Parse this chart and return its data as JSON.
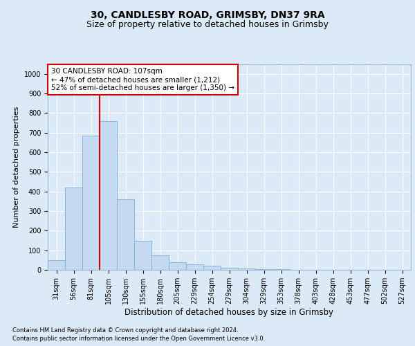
{
  "title1": "30, CANDLESBY ROAD, GRIMSBY, DN37 9RA",
  "title2": "Size of property relative to detached houses in Grimsby",
  "xlabel": "Distribution of detached houses by size in Grimsby",
  "ylabel": "Number of detached properties",
  "bar_labels": [
    "31sqm",
    "56sqm",
    "81sqm",
    "105sqm",
    "130sqm",
    "155sqm",
    "180sqm",
    "205sqm",
    "229sqm",
    "254sqm",
    "279sqm",
    "304sqm",
    "329sqm",
    "353sqm",
    "378sqm",
    "403sqm",
    "428sqm",
    "453sqm",
    "477sqm",
    "502sqm",
    "527sqm"
  ],
  "bar_values": [
    50,
    420,
    685,
    760,
    360,
    150,
    75,
    40,
    30,
    20,
    10,
    6,
    4,
    2,
    1,
    1,
    0,
    0,
    0,
    0,
    0
  ],
  "bar_color": "#c5d9f0",
  "bar_edgecolor": "#7aadd4",
  "bar_width": 1.0,
  "vline_index": 3.5,
  "vline_color": "#cc0000",
  "annotation_text": "30 CANDLESBY ROAD: 107sqm\n← 47% of detached houses are smaller (1,212)\n52% of semi-detached houses are larger (1,350) →",
  "annotation_box_facecolor": "#ffffff",
  "annotation_box_edgecolor": "#cc0000",
  "ylim": [
    0,
    1050
  ],
  "yticks": [
    0,
    100,
    200,
    300,
    400,
    500,
    600,
    700,
    800,
    900,
    1000
  ],
  "footer1": "Contains HM Land Registry data © Crown copyright and database right 2024.",
  "footer2": "Contains public sector information licensed under the Open Government Licence v3.0.",
  "bg_color": "#dce9f7",
  "plot_bg_color": "#dce9f7",
  "grid_color": "#ffffff",
  "title1_fontsize": 10,
  "title2_fontsize": 9,
  "tick_fontsize": 7,
  "ylabel_fontsize": 8,
  "xlabel_fontsize": 8.5,
  "annotation_fontsize": 7.5,
  "footer_fontsize": 6
}
